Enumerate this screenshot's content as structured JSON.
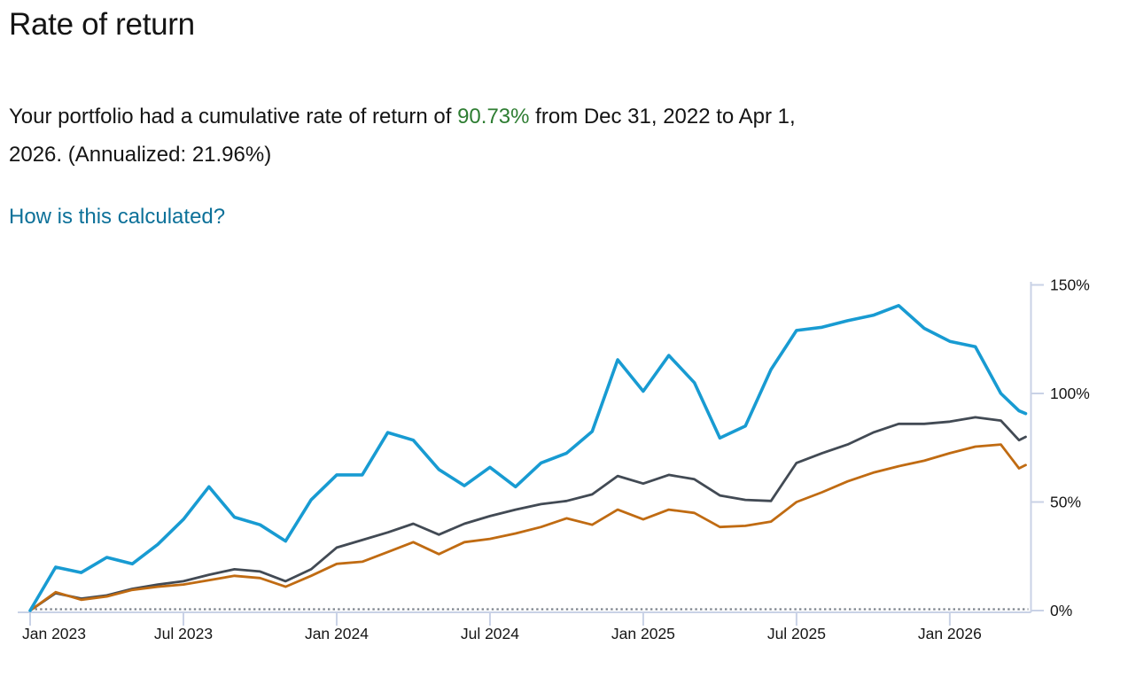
{
  "page": {
    "title": "Rate of return",
    "summary": {
      "prefix": "Your portfolio had a cumulative rate of return of ",
      "highlight": "90.73%",
      "line1_rest": " from Dec 31, 2022 to Apr 1,",
      "line2": "2026. (Annualized: 21.96%)"
    },
    "link_label": "How is this calculated?"
  },
  "colors": {
    "green": "#2e7d32",
    "link": "#0d7199",
    "axis": "#c9d2e6",
    "zero_line": "#7e848d",
    "series_blue": "#189bd2",
    "series_gray": "#424a54",
    "series_orange": "#c06b12"
  },
  "chart_data": {
    "type": "line",
    "title": "Rate of return chart",
    "x_start": "Dec 31, 2022",
    "x_end": "Apr 1, 2026",
    "x_tick_labels": [
      "Jan 2023",
      "Jul 2023",
      "Jan 2024",
      "Jul 2024",
      "Jan 2025",
      "Jul 2025",
      "Jan 2026"
    ],
    "x_tick_month_index": [
      0,
      6,
      12,
      18,
      24,
      30,
      36
    ],
    "y_tick_labels": [
      "0%",
      "50%",
      "100%",
      "150%"
    ],
    "y_ticks": [
      0,
      50,
      100,
      150
    ],
    "ylim": [
      0,
      150
    ],
    "grid": "dotted zero line only",
    "legend_position": "none",
    "y_axis_side": "right",
    "sampling": "monthly from Dec 31 2022, final point Apr 1 2026",
    "series": [
      {
        "name": "dark-gray",
        "color": "#424a54",
        "values": [
          0,
          8,
          5.5,
          7,
          10,
          12,
          13.5,
          16.5,
          19,
          18,
          13.5,
          19,
          29,
          32.5,
          36,
          40,
          35,
          40,
          43.5,
          46.5,
          49,
          50.5,
          53.5,
          62,
          58.5,
          62.5,
          60.5,
          53,
          51,
          50.5,
          68,
          72.5,
          76.5,
          82,
          86,
          86,
          87,
          89,
          87.5,
          78.5,
          80
        ]
      },
      {
        "name": "orange",
        "color": "#c06b12",
        "values": [
          0,
          8.5,
          5,
          6.5,
          9.5,
          11,
          12,
          14,
          16,
          15,
          11,
          16,
          21.5,
          22.5,
          27,
          31.5,
          26,
          31.5,
          33,
          35.5,
          38.5,
          42.5,
          39.5,
          46.5,
          42,
          46.5,
          45,
          38.5,
          39,
          41,
          50,
          54.5,
          59.5,
          63.5,
          66.5,
          69,
          72.5,
          75.5,
          76.5,
          65.5,
          67
        ]
      },
      {
        "name": "blue",
        "color": "#189bd2",
        "values": [
          0,
          20,
          17.5,
          24.5,
          21.5,
          30.5,
          42,
          57,
          43,
          39.5,
          32,
          51,
          62.5,
          62.5,
          82,
          78.5,
          65,
          57.5,
          66,
          57,
          68,
          72.5,
          82.5,
          115.5,
          101,
          117.5,
          105,
          79.5,
          85,
          111,
          129,
          130.5,
          133.5,
          136,
          140.5,
          130,
          124,
          121.5,
          100,
          92,
          90.73
        ]
      }
    ]
  }
}
